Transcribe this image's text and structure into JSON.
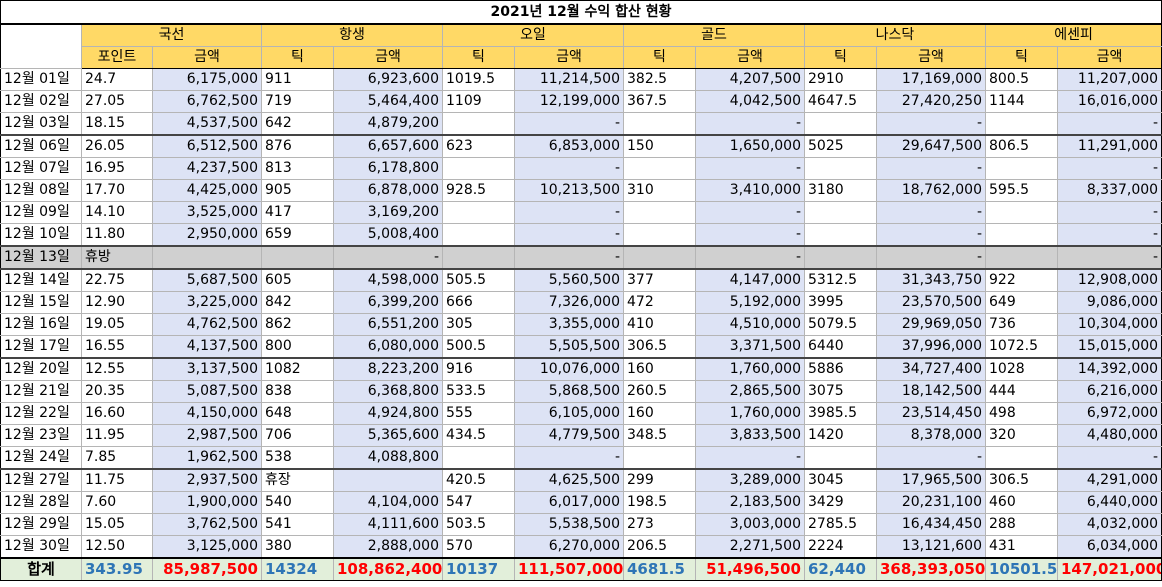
{
  "title": "2021년 12월 수익 합산 현황",
  "groups": [
    "국선",
    "항생",
    "오일",
    "골드",
    "나스닥",
    "에센피"
  ],
  "subheaders": {
    "point": "포인트",
    "tick": "틱",
    "amount": "금액"
  },
  "rows": [
    {
      "date": "12월 01일",
      "cells": [
        "24.7",
        "6,175,000",
        "911",
        "6,923,600",
        "1019.5",
        "11,214,500",
        "382.5",
        "4,207,500",
        "2910",
        "17,169,000",
        "800.5",
        "11,207,000"
      ]
    },
    {
      "date": "12월 02일",
      "cells": [
        "27.05",
        "6,762,500",
        "719",
        "5,464,400",
        "1109",
        "12,199,000",
        "367.5",
        "4,042,500",
        "4647.5",
        "27,420,250",
        "1144",
        "16,016,000"
      ]
    },
    {
      "date": "12월 03일",
      "cells": [
        "18.15",
        "4,537,500",
        "642",
        "4,879,200",
        "",
        "-",
        "",
        "-",
        "",
        "-",
        "",
        "-"
      ]
    },
    {
      "date": "12월 06일",
      "weekstart": true,
      "cells": [
        "26.05",
        "6,512,500",
        "876",
        "6,657,600",
        "623",
        "6,853,000",
        "150",
        "1,650,000",
        "5025",
        "29,647,500",
        "806.5",
        "11,291,000"
      ]
    },
    {
      "date": "12월 07일",
      "cells": [
        "16.95",
        "4,237,500",
        "813",
        "6,178,800",
        "",
        "-",
        "",
        "-",
        "",
        "-",
        "",
        "-"
      ]
    },
    {
      "date": "12월 08일",
      "cells": [
        "17.70",
        "4,425,000",
        "905",
        "6,878,000",
        "928.5",
        "10,213,500",
        "310",
        "3,410,000",
        "3180",
        "18,762,000",
        "595.5",
        "8,337,000"
      ]
    },
    {
      "date": "12월 09일",
      "cells": [
        "14.10",
        "3,525,000",
        "417",
        "3,169,200",
        "",
        "-",
        "",
        "-",
        "",
        "-",
        "",
        "-"
      ]
    },
    {
      "date": "12월 10일",
      "cells": [
        "11.80",
        "2,950,000",
        "659",
        "5,008,400",
        "",
        "-",
        "",
        "-",
        "",
        "-",
        "",
        "-"
      ]
    },
    {
      "date": "12월 13일",
      "weekstart": true,
      "holiday": true,
      "cells": [
        "휴방",
        "",
        "",
        "-",
        "",
        "-",
        "",
        "-",
        "",
        "-",
        "",
        "-"
      ]
    },
    {
      "date": "12월 14일",
      "weekstart": true,
      "cells": [
        "22.75",
        "5,687,500",
        "605",
        "4,598,000",
        "505.5",
        "5,560,500",
        "377",
        "4,147,000",
        "5312.5",
        "31,343,750",
        "922",
        "12,908,000"
      ]
    },
    {
      "date": "12월 15일",
      "cells": [
        "12.90",
        "3,225,000",
        "842",
        "6,399,200",
        "666",
        "7,326,000",
        "472",
        "5,192,000",
        "3995",
        "23,570,500",
        "649",
        "9,086,000"
      ]
    },
    {
      "date": "12월 16일",
      "cells": [
        "19.05",
        "4,762,500",
        "862",
        "6,551,200",
        "305",
        "3,355,000",
        "410",
        "4,510,000",
        "5079.5",
        "29,969,050",
        "736",
        "10,304,000"
      ]
    },
    {
      "date": "12월 17일",
      "cells": [
        "16.55",
        "4,137,500",
        "800",
        "6,080,000",
        "500.5",
        "5,505,500",
        "306.5",
        "3,371,500",
        "6440",
        "37,996,000",
        "1072.5",
        "15,015,000"
      ]
    },
    {
      "date": "12월 20일",
      "weekstart": true,
      "cells": [
        "12.55",
        "3,137,500",
        "1082",
        "8,223,200",
        "916",
        "10,076,000",
        "160",
        "1,760,000",
        "5886",
        "34,727,400",
        "1028",
        "14,392,000"
      ]
    },
    {
      "date": "12월 21일",
      "cells": [
        "20.35",
        "5,087,500",
        "838",
        "6,368,800",
        "533.5",
        "5,868,500",
        "260.5",
        "2,865,500",
        "3075",
        "18,142,500",
        "444",
        "6,216,000"
      ]
    },
    {
      "date": "12월 22일",
      "cells": [
        "16.60",
        "4,150,000",
        "648",
        "4,924,800",
        "555",
        "6,105,000",
        "160",
        "1,760,000",
        "3985.5",
        "23,514,450",
        "498",
        "6,972,000"
      ]
    },
    {
      "date": "12월 23일",
      "cells": [
        "11.95",
        "2,987,500",
        "706",
        "5,365,600",
        "434.5",
        "4,779,500",
        "348.5",
        "3,833,500",
        "1420",
        "8,378,000",
        "320",
        "4,480,000"
      ]
    },
    {
      "date": "12월 24일",
      "cells": [
        "7.85",
        "1,962,500",
        "538",
        "4,088,800",
        "",
        "-",
        "",
        "-",
        "",
        "-",
        "",
        "-"
      ]
    },
    {
      "date": "12월 27일",
      "weekstart": true,
      "cells": [
        "11.75",
        "2,937,500",
        "휴장",
        "",
        "420.5",
        "4,625,500",
        "299",
        "3,289,000",
        "3045",
        "17,965,500",
        "306.5",
        "4,291,000"
      ]
    },
    {
      "date": "12월 28일",
      "cells": [
        "7.60",
        "1,900,000",
        "540",
        "4,104,000",
        "547",
        "6,017,000",
        "198.5",
        "2,183,500",
        "3429",
        "20,231,100",
        "460",
        "6,440,000"
      ]
    },
    {
      "date": "12월 29일",
      "cells": [
        "15.05",
        "3,762,500",
        "541",
        "4,111,600",
        "503.5",
        "5,538,500",
        "273",
        "3,003,000",
        "2785.5",
        "16,434,450",
        "288",
        "4,032,000"
      ]
    },
    {
      "date": "12월 30일",
      "cells": [
        "12.50",
        "3,125,000",
        "380",
        "2,888,000",
        "570",
        "6,270,000",
        "206.5",
        "2,271,500",
        "2224",
        "13,121,600",
        "431",
        "6,034,000"
      ]
    }
  ],
  "total": {
    "label": "합계",
    "cells": [
      "343.95",
      "85,987,500",
      "14324",
      "108,862,400",
      "10137",
      "111,507,000",
      "4681.5",
      "51,496,500",
      "62,440",
      "368,393,050",
      "10501.5",
      "147,021,000"
    ]
  }
}
